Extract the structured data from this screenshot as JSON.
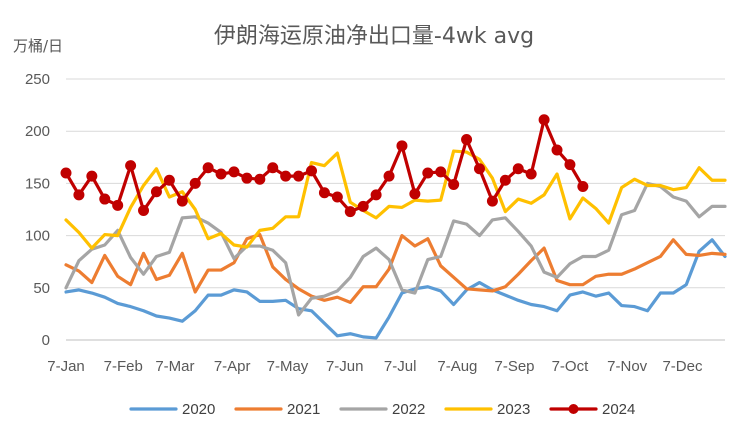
{
  "chart_data": {
    "type": "line",
    "title": "伊朗海运原油净出口量-4wk avg",
    "ylabel": "万桶/日",
    "xlabel": "",
    "ylim": [
      0,
      250
    ],
    "yticks": [
      0,
      50,
      100,
      150,
      200,
      250
    ],
    "x_range": [
      1,
      52
    ],
    "xticks": [
      {
        "label": "7-Jan",
        "week": 1
      },
      {
        "label": "7-Feb",
        "week": 5.43
      },
      {
        "label": "7-Mar",
        "week": 9.43
      },
      {
        "label": "7-Apr",
        "week": 13.86
      },
      {
        "label": "7-May",
        "week": 18.14
      },
      {
        "label": "7-Jun",
        "week": 22.57
      },
      {
        "label": "7-Jul",
        "week": 26.86
      },
      {
        "label": "7-Aug",
        "week": 31.29
      },
      {
        "label": "7-Sep",
        "week": 35.71
      },
      {
        "label": "7-Oct",
        "week": 40
      },
      {
        "label": "7-Nov",
        "week": 44.43
      },
      {
        "label": "7-Dec",
        "week": 48.71
      }
    ],
    "grid": true,
    "legend_position": "bottom",
    "series": [
      {
        "name": "2020",
        "color": "#5b9bd5",
        "markers": false,
        "values": [
          46,
          48,
          45,
          41,
          35,
          32,
          28,
          23,
          21,
          18,
          28,
          43,
          43,
          48,
          46,
          37,
          37,
          38,
          30,
          28,
          16,
          4,
          6,
          3,
          2,
          22,
          45,
          49,
          51,
          47,
          34,
          48,
          55,
          48,
          43,
          38,
          34,
          32,
          28,
          43,
          46,
          42,
          45,
          33,
          32,
          28,
          45,
          45,
          53,
          85,
          96,
          80
        ]
      },
      {
        "name": "2021",
        "color": "#ed7d31",
        "markers": false,
        "values": [
          72,
          66,
          55,
          81,
          61,
          53,
          83,
          58,
          62,
          83,
          46,
          67,
          67,
          74,
          97,
          101,
          70,
          58,
          49,
          42,
          38,
          41,
          36,
          51,
          51,
          68,
          100,
          90,
          97,
          71,
          60,
          49,
          48,
          47,
          51,
          63,
          76,
          88,
          57,
          53,
          53,
          61,
          63,
          63,
          68,
          74,
          80,
          96,
          82,
          81,
          83,
          82
        ]
      },
      {
        "name": "2022",
        "color": "#a5a5a5",
        "markers": false,
        "values": [
          50,
          76,
          87,
          91,
          105,
          79,
          63,
          80,
          84,
          117,
          118,
          112,
          103,
          78,
          90,
          90,
          86,
          74,
          24,
          40,
          42,
          47,
          60,
          80,
          88,
          77,
          48,
          45,
          77,
          80,
          114,
          111,
          100,
          115,
          117,
          104,
          90,
          65,
          60,
          73,
          80,
          80,
          86,
          120,
          124,
          150,
          147,
          137,
          133,
          118,
          128,
          128
        ]
      },
      {
        "name": "2023",
        "color": "#ffc000",
        "markers": false,
        "values": [
          115,
          103,
          88,
          101,
          100,
          127,
          148,
          164,
          137,
          142,
          125,
          97,
          102,
          91,
          89,
          105,
          107,
          118,
          118,
          170,
          167,
          179,
          132,
          124,
          117,
          128,
          127,
          134,
          133,
          134,
          181,
          180,
          173,
          155,
          123,
          135,
          131,
          139,
          159,
          116,
          136,
          126,
          112,
          146,
          154,
          148,
          148,
          144,
          146,
          165,
          153,
          153
        ]
      },
      {
        "name": "2024",
        "color": "#c00000",
        "markers": true,
        "values": [
          160,
          139,
          157,
          135,
          129,
          167,
          124,
          142,
          153,
          133,
          150,
          165,
          159,
          161,
          155,
          154,
          165,
          157,
          157,
          162,
          141,
          137,
          123,
          128,
          139,
          157,
          186,
          140,
          160,
          161,
          149,
          192,
          164,
          133,
          153,
          164,
          159,
          211,
          182,
          168,
          147
        ]
      }
    ]
  }
}
